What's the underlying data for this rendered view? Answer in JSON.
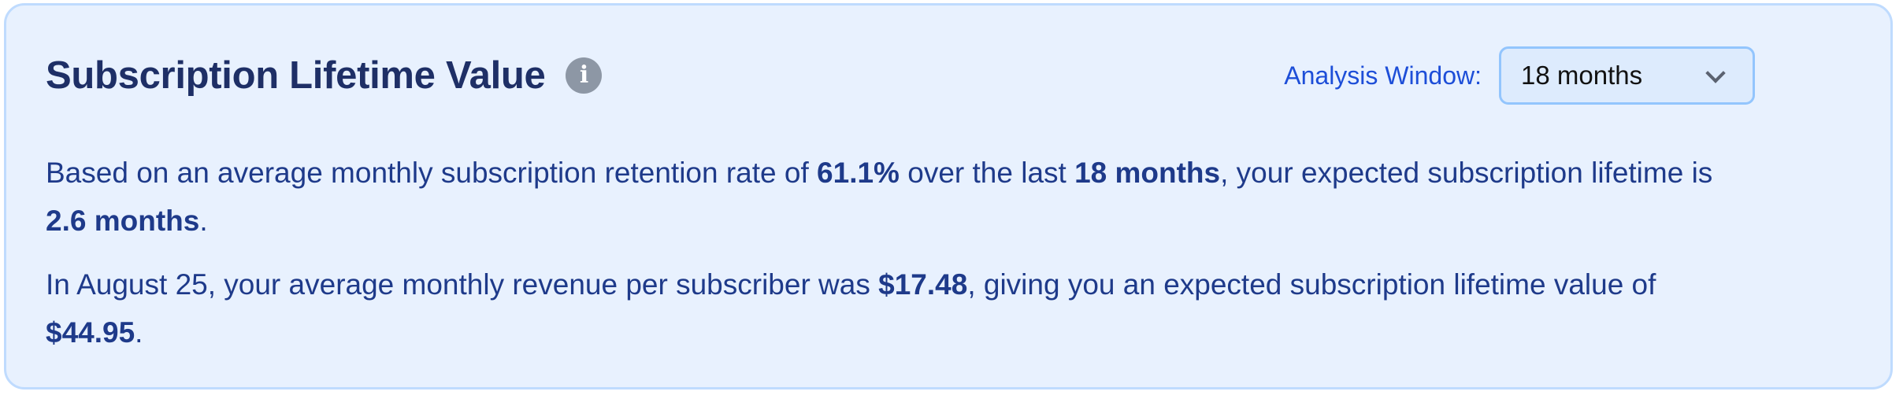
{
  "header": {
    "title": "Subscription Lifetime Value",
    "info_icon": "info-icon"
  },
  "analysis_window": {
    "label": "Analysis Window:",
    "selected": "18 months"
  },
  "summary": {
    "p1": {
      "t1": "Based on an average monthly subscription retention rate of ",
      "retention_rate": "61.1%",
      "t2": " over the last ",
      "window": "18 months",
      "t3": ", your expected subscription lifetime is ",
      "lifetime": "2.6 months",
      "t4": "."
    },
    "p2": {
      "t1": "In August 25, your average monthly revenue per subscriber was ",
      "revenue": "$17.48",
      "t2": ", giving you an expected subscription lifetime value of ",
      "ltv": "$44.95",
      "t3": "."
    }
  },
  "colors": {
    "title": "#1e2f66",
    "text": "#1e3a8a",
    "accent": "#1d4ed8",
    "background": "#e8f1fe",
    "border": "#bfdbfe"
  }
}
